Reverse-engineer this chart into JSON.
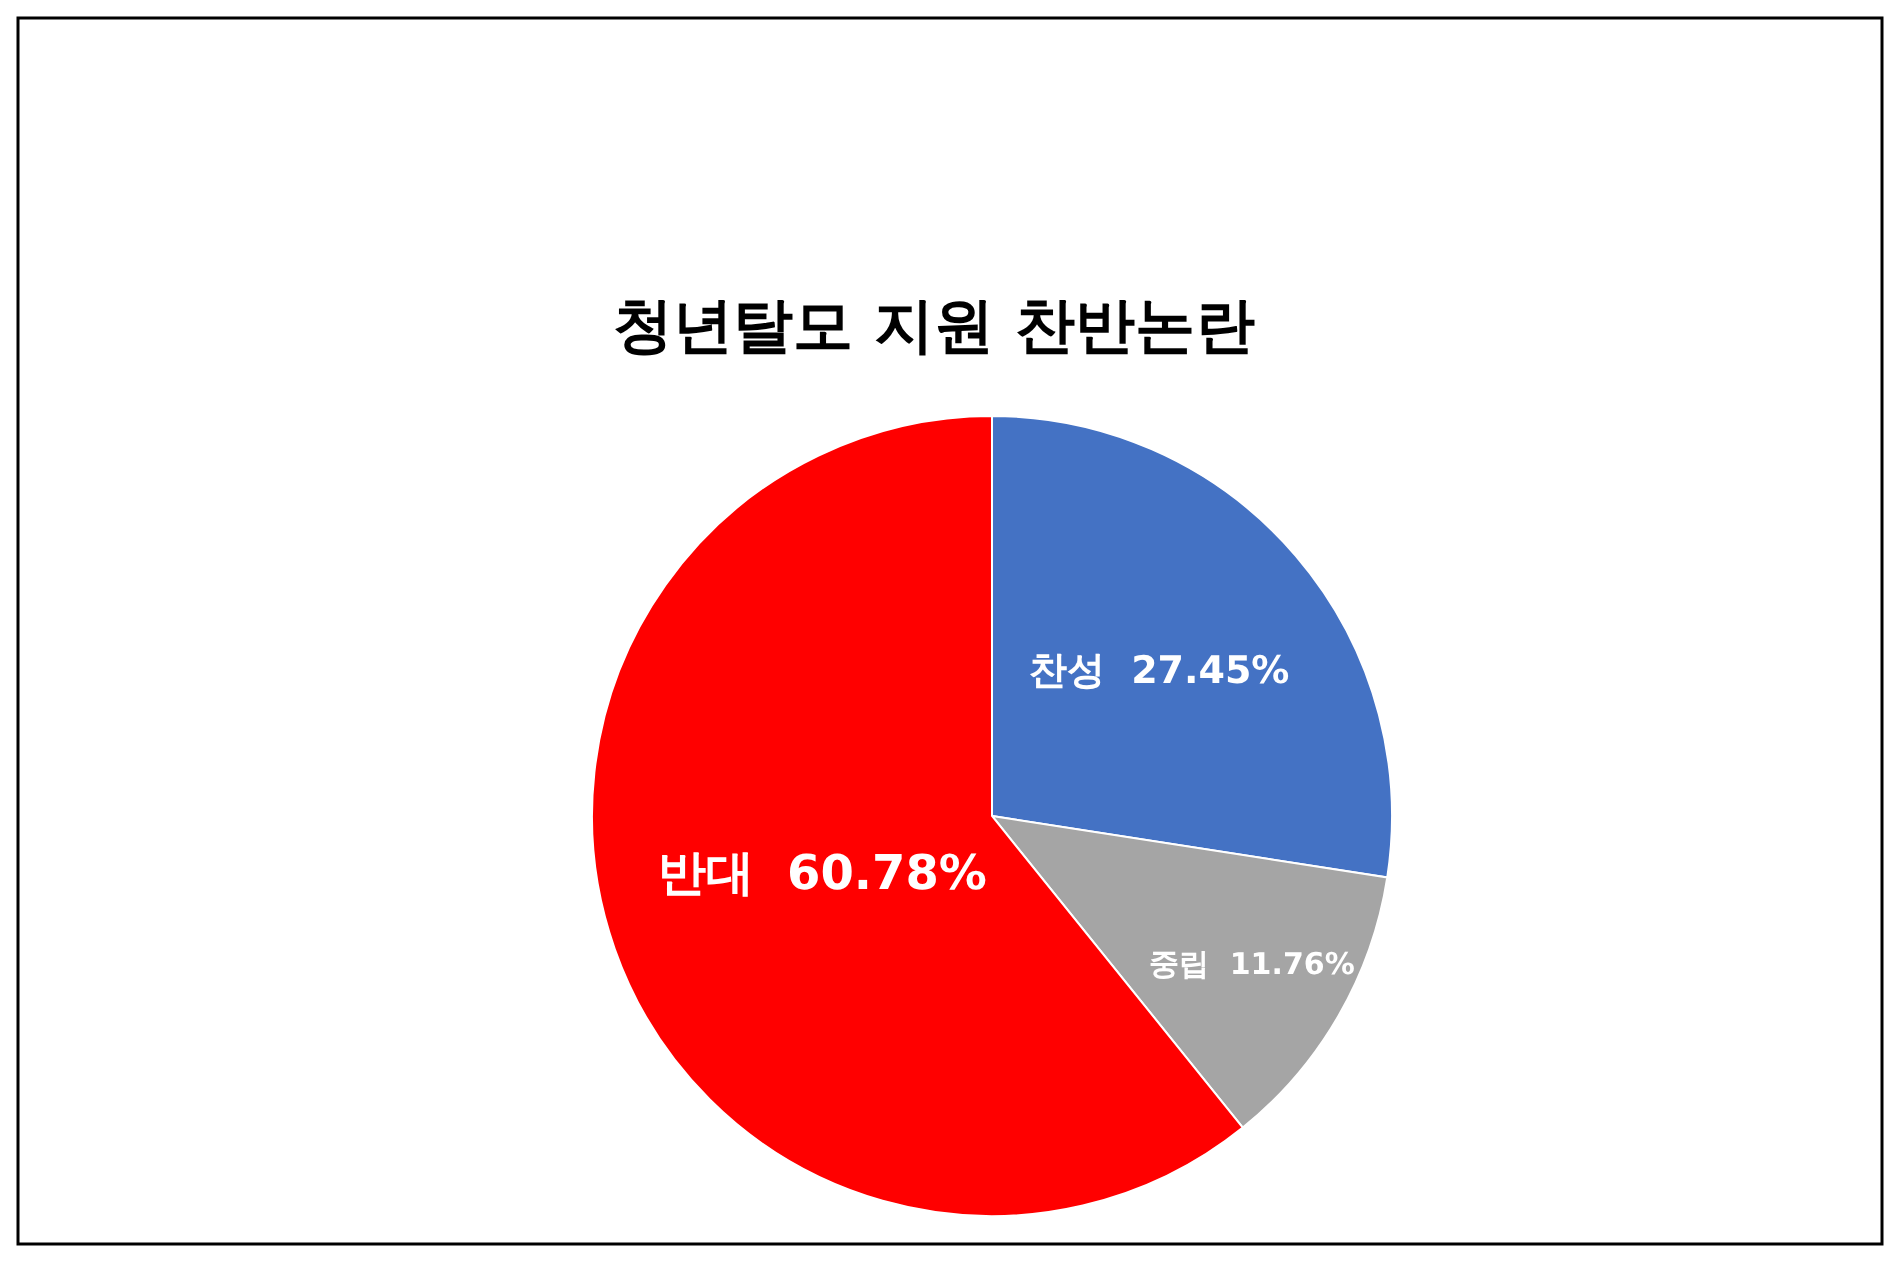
{
  "chart_data": {
    "type": "pie",
    "title": "청년탈모 지원 찬반논란",
    "categories": [
      "찬성",
      "중립",
      "반대"
    ],
    "values": [
      27.45,
      11.76,
      60.78
    ],
    "value_labels": [
      "27.45%",
      "11.76%",
      "60.78%"
    ],
    "colors": [
      "#4472c4",
      "#a5a5a5",
      "#ff0000"
    ],
    "legend": false
  }
}
